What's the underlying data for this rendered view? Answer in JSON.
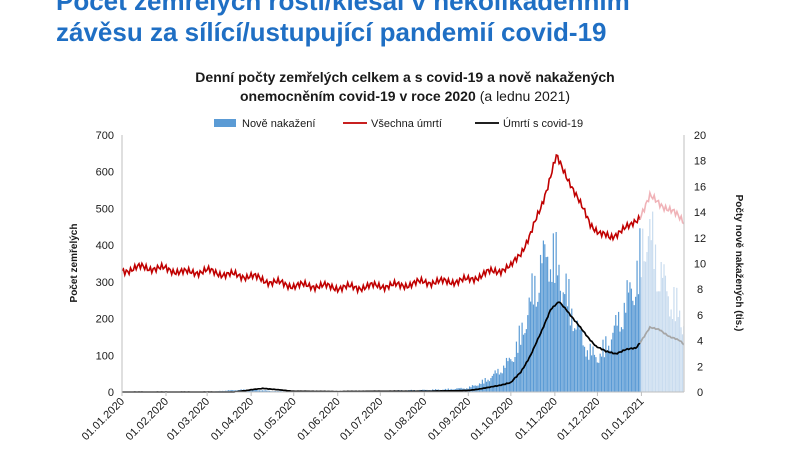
{
  "headline": {
    "line1": "Počet zemřelých rostl/klesal v několikadenním",
    "line2": "závěsu za sílící/ustupující pandemií covid-19"
  },
  "chart_data": {
    "type": "line",
    "title_line1": "Denní počty zemřelých celkem a s covid-19 a nově nakažených",
    "title_line2_bold": "onemocněním covid-19 v roce 2020",
    "title_line2_rest": "(a lednu 2021)",
    "ylabel_left": "Počet zemřelých",
    "ylabel_right": "Počty nově nakažených (tis.)",
    "ylim_left": [
      0,
      700
    ],
    "ylim_right": [
      0,
      20
    ],
    "yticks_left": [
      0,
      100,
      200,
      300,
      400,
      500,
      600,
      700
    ],
    "yticks_right": [
      0,
      2,
      4,
      6,
      8,
      10,
      12,
      14,
      16,
      18,
      20
    ],
    "x_start": "01.01.2020",
    "x_end": "31.01.2021",
    "xticks": [
      "01.01.2020",
      "01.02.2020",
      "01.03.2020",
      "01.04.2020",
      "01.05.2020",
      "01.06.2020",
      "01.07.2020",
      "01.08.2020",
      "01.09.2020",
      "01.10.2020",
      "01.11.2020",
      "01.12.2020",
      "01.01.2021"
    ],
    "grid": false,
    "legend_position": "top",
    "colors": {
      "new_cases": "#5b9bd5",
      "new_cases_faded": "#c9dcef",
      "all_deaths": "#c00000",
      "all_deaths_faded": "#f0b3b8",
      "covid_deaths": "#000000",
      "covid_deaths_faded": "#a6a6a6"
    },
    "series": [
      {
        "name": "Nově nakažení",
        "kind": "bar",
        "axis": "right",
        "unit": "tis.",
        "points": [
          [
            "01.03.2020",
            0
          ],
          [
            "15.03.2020",
            0.15
          ],
          [
            "01.04.2020",
            0.25
          ],
          [
            "15.04.2020",
            0.1
          ],
          [
            "01.05.2020",
            0.05
          ],
          [
            "01.06.2020",
            0.05
          ],
          [
            "01.07.2020",
            0.1
          ],
          [
            "01.08.2020",
            0.2
          ],
          [
            "15.08.2020",
            0.25
          ],
          [
            "01.09.2020",
            0.4
          ],
          [
            "10.09.2020",
            0.9
          ],
          [
            "15.09.2020",
            1.3
          ],
          [
            "22.09.2020",
            2.0
          ],
          [
            "01.10.2020",
            3.2
          ],
          [
            "08.10.2020",
            5.5
          ],
          [
            "15.10.2020",
            9.0
          ],
          [
            "22.10.2020",
            12.5
          ],
          [
            "29.10.2020",
            14.0
          ],
          [
            "04.11.2020",
            12.0
          ],
          [
            "11.11.2020",
            9.0
          ],
          [
            "18.11.2020",
            6.0
          ],
          [
            "25.11.2020",
            4.0
          ],
          [
            "02.12.2020",
            3.5
          ],
          [
            "09.12.2020",
            5.0
          ],
          [
            "16.12.2020",
            7.0
          ],
          [
            "23.12.2020",
            9.5
          ],
          [
            "30.12.2020",
            12.0
          ],
          [
            "05.01.2021",
            16.5
          ],
          [
            "12.01.2021",
            13.0
          ],
          [
            "19.01.2021",
            10.0
          ],
          [
            "25.01.2021",
            8.5
          ],
          [
            "31.01.2021",
            7.0
          ]
        ]
      },
      {
        "name": "Všechna úmrtí",
        "kind": "line",
        "axis": "left",
        "points": [
          [
            "01.01.2020",
            330
          ],
          [
            "15.01.2020",
            340
          ],
          [
            "01.02.2020",
            335
          ],
          [
            "15.02.2020",
            325
          ],
          [
            "01.03.2020",
            330
          ],
          [
            "15.03.2020",
            320
          ],
          [
            "01.04.2020",
            315
          ],
          [
            "15.04.2020",
            300
          ],
          [
            "01.05.2020",
            290
          ],
          [
            "15.05.2020",
            290
          ],
          [
            "01.06.2020",
            285
          ],
          [
            "15.06.2020",
            285
          ],
          [
            "01.07.2020",
            290
          ],
          [
            "15.07.2020",
            290
          ],
          [
            "01.08.2020",
            300
          ],
          [
            "15.08.2020",
            300
          ],
          [
            "01.09.2020",
            305
          ],
          [
            "15.09.2020",
            325
          ],
          [
            "01.10.2020",
            340
          ],
          [
            "08.10.2020",
            380
          ],
          [
            "15.10.2020",
            430
          ],
          [
            "22.10.2020",
            500
          ],
          [
            "29.10.2020",
            590
          ],
          [
            "02.11.2020",
            640
          ],
          [
            "06.11.2020",
            610
          ],
          [
            "12.11.2020",
            570
          ],
          [
            "19.11.2020",
            510
          ],
          [
            "26.11.2020",
            460
          ],
          [
            "03.12.2020",
            430
          ],
          [
            "10.12.2020",
            420
          ],
          [
            "17.12.2020",
            440
          ],
          [
            "24.12.2020",
            450
          ],
          [
            "31.12.2020",
            480
          ],
          [
            "07.01.2021",
            530
          ],
          [
            "14.01.2021",
            515
          ],
          [
            "21.01.2021",
            495
          ],
          [
            "28.01.2021",
            475
          ],
          [
            "31.01.2021",
            465
          ]
        ]
      },
      {
        "name": "Úmrtí s covid-19",
        "kind": "line",
        "axis": "left",
        "points": [
          [
            "01.01.2020",
            0
          ],
          [
            "20.03.2020",
            0
          ],
          [
            "01.04.2020",
            6
          ],
          [
            "10.04.2020",
            10
          ],
          [
            "20.04.2020",
            6
          ],
          [
            "01.05.2020",
            2
          ],
          [
            "01.06.2020",
            1
          ],
          [
            "01.07.2020",
            2
          ],
          [
            "01.08.2020",
            2
          ],
          [
            "01.09.2020",
            4
          ],
          [
            "15.09.2020",
            12
          ],
          [
            "01.10.2020",
            25
          ],
          [
            "08.10.2020",
            55
          ],
          [
            "15.10.2020",
            100
          ],
          [
            "22.10.2020",
            160
          ],
          [
            "29.10.2020",
            225
          ],
          [
            "04.11.2020",
            245
          ],
          [
            "09.11.2020",
            225
          ],
          [
            "16.11.2020",
            190
          ],
          [
            "23.11.2020",
            155
          ],
          [
            "30.11.2020",
            125
          ],
          [
            "07.12.2020",
            110
          ],
          [
            "14.12.2020",
            105
          ],
          [
            "21.12.2020",
            115
          ],
          [
            "28.12.2020",
            120
          ],
          [
            "31.12.2020",
            135
          ],
          [
            "07.01.2021",
            175
          ],
          [
            "14.01.2021",
            170
          ],
          [
            "21.01.2021",
            150
          ],
          [
            "28.01.2021",
            140
          ],
          [
            "31.01.2021",
            130
          ]
        ]
      }
    ]
  }
}
